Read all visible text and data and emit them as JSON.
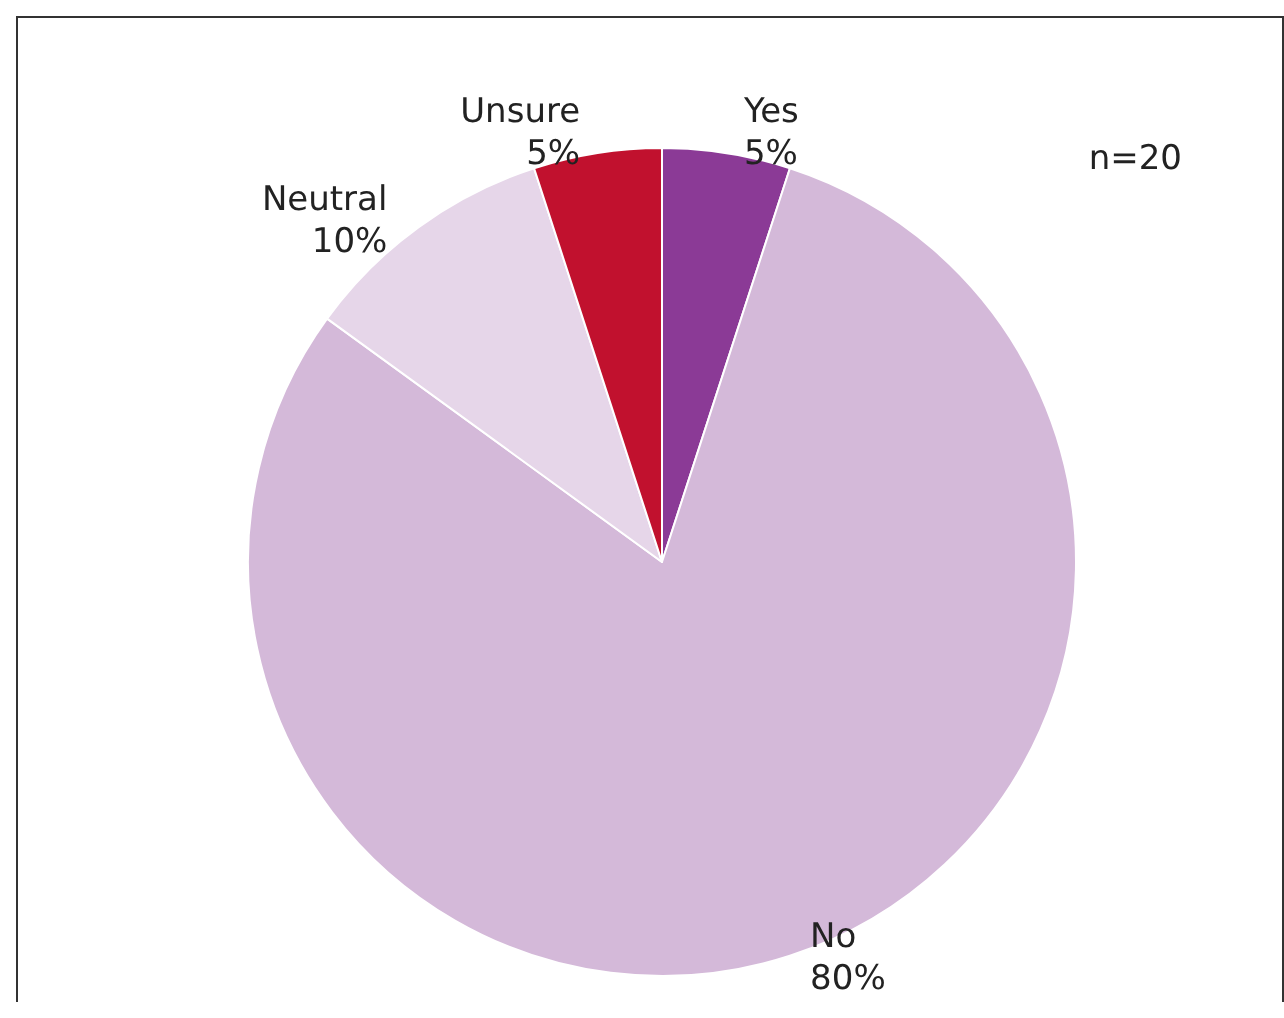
{
  "chart_data": {
    "type": "pie",
    "categories": [
      "Yes",
      "No",
      "Neutral",
      "Unsure"
    ],
    "values": [
      5,
      80,
      10,
      5
    ],
    "colors": [
      "#8b3a96",
      "#d4b9d9",
      "#e6d6e9",
      "#c1112e"
    ],
    "value_labels": [
      "5%",
      "80%",
      "10%",
      "5%"
    ],
    "legend": false,
    "annotations": [
      "n=20"
    ]
  }
}
